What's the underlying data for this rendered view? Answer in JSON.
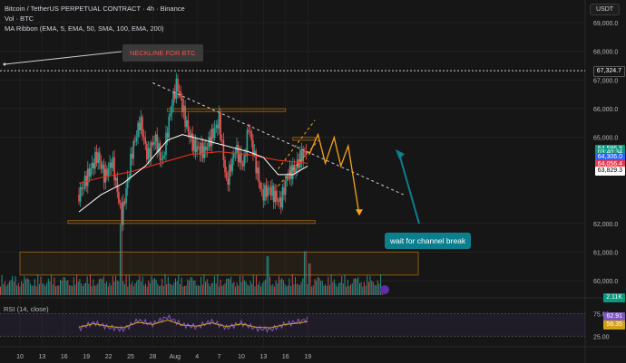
{
  "header": {
    "symbol_line": "Bitcoin / TetherUS PERPETUAL CONTRACT · 4h · Binance",
    "vol_line": "Vol · BTC",
    "ma_line": "MA Ribbon (EMA, 5, EMA, 50, SMA, 100, EMA, 200)",
    "unit_button": "USDT"
  },
  "annotations": {
    "neckline_label": "NECKLINE FOR BTC",
    "callout": "wait for channel break",
    "rsi_label": "RSI (14, close)"
  },
  "colors": {
    "up": "#26a69a",
    "down": "#ef5350",
    "ema50": "#ffffff",
    "sma100": "#e0301e",
    "accent_orange": "#f7a21b",
    "callout": "#0c7f8e",
    "rsi_line": "#7e57c2",
    "rsi_ma": "#d4a017"
  },
  "badges": [
    {
      "text": "67,324.7",
      "price": 67324.7,
      "bg": "#161616",
      "fg": "#ffffff"
    },
    {
      "text": "64,596.8",
      "price": 64596.8,
      "bg": "#089981",
      "fg": "#ffffff"
    },
    {
      "text": "03:40:34",
      "price": 64450,
      "bg": "#089981",
      "fg": "#ffffff"
    },
    {
      "text": "64,306.0",
      "price": 64306.0,
      "bg": "#2962ff",
      "fg": "#ffffff"
    },
    {
      "text": "64,056.4",
      "price": 64056.4,
      "bg": "#f23645",
      "fg": "#ffffff"
    },
    {
      "text": "63,829.3",
      "price": 63829.3,
      "bg": "#ffffff",
      "fg": "#000000"
    },
    {
      "text": "2.11K",
      "price": 59420,
      "bg": "#089981",
      "fg": "#ffffff"
    }
  ],
  "rsi_badges": [
    {
      "text": "62.91",
      "value": 62.91,
      "bg": "#7e57c2"
    },
    {
      "text": "56.35",
      "value": 56.35,
      "bg": "#d4a017"
    }
  ],
  "chart_data": {
    "type": "candlestick",
    "title": "Bitcoin / TetherUS PERPETUAL CONTRACT · 4h · Binance",
    "y_axis": {
      "ticks": [
        69000,
        68000,
        67000,
        66000,
        65000,
        62000,
        61000,
        60000
      ],
      "tick_labels": [
        "69,000.0",
        "68,000.0",
        "67,000.0",
        "66,000.0",
        "65,000.0",
        "62,000.0",
        "61,000.0",
        "60,000.0"
      ],
      "range": [
        59500,
        69600
      ]
    },
    "x_axis": {
      "ticks": [
        "10",
        "13",
        "16",
        "19",
        "22",
        "25",
        "28",
        "Aug",
        "4",
        "7",
        "10",
        "13",
        "16",
        "19"
      ]
    },
    "rsi_axis": {
      "ticks": [
        75,
        25
      ],
      "tick_labels": [
        "75.00",
        "25.00"
      ]
    },
    "price_path": [
      {
        "x": 8.0,
        "price": 63000
      },
      {
        "x": 10.5,
        "price": 64400
      },
      {
        "x": 11.5,
        "price": 63600
      },
      {
        "x": 12.5,
        "price": 64200
      },
      {
        "x": 13.8,
        "price": 62200
      },
      {
        "x": 15.2,
        "price": 64500
      },
      {
        "x": 16.3,
        "price": 65600
      },
      {
        "x": 17.3,
        "price": 64300
      },
      {
        "x": 18.3,
        "price": 65000
      },
      {
        "x": 19.3,
        "price": 64100
      },
      {
        "x": 20.6,
        "price": 66200
      },
      {
        "x": 21.3,
        "price": 66900
      },
      {
        "x": 22.5,
        "price": 65500
      },
      {
        "x": 23.5,
        "price": 64700
      },
      {
        "x": 25.0,
        "price": 64500
      },
      {
        "x": 27.0,
        "price": 65600
      },
      {
        "x": 28.0,
        "price": 63400
      },
      {
        "x": 29.2,
        "price": 64600
      },
      {
        "x": 30.3,
        "price": 64000
      },
      {
        "x": 31.0,
        "price": 65400
      },
      {
        "x": 32.0,
        "price": 64000
      },
      {
        "x": 32.8,
        "price": 63000
      },
      {
        "x": 33.8,
        "price": 63200
      },
      {
        "x": 35.3,
        "price": 62700
      },
      {
        "x": 36.3,
        "price": 63700
      },
      {
        "x": 37.3,
        "price": 63900
      },
      {
        "x": 38.0,
        "price": 64300
      },
      {
        "x": 39.0,
        "price": 64600
      }
    ],
    "ema50_path": [
      {
        "x": 8.0,
        "price": 62400
      },
      {
        "x": 11.0,
        "price": 63000
      },
      {
        "x": 14.0,
        "price": 63400
      },
      {
        "x": 17.0,
        "price": 64000
      },
      {
        "x": 20.0,
        "price": 64900
      },
      {
        "x": 22.0,
        "price": 65100
      },
      {
        "x": 25.0,
        "price": 64900
      },
      {
        "x": 28.0,
        "price": 64700
      },
      {
        "x": 31.0,
        "price": 64500
      },
      {
        "x": 33.0,
        "price": 64300
      },
      {
        "x": 35.0,
        "price": 63700
      },
      {
        "x": 37.0,
        "price": 63700
      },
      {
        "x": 39.0,
        "price": 64000
      }
    ],
    "sma100_path": [
      {
        "x": 8.0,
        "price": 63400
      },
      {
        "x": 11.0,
        "price": 63600
      },
      {
        "x": 15.0,
        "price": 63800
      },
      {
        "x": 19.0,
        "price": 64100
      },
      {
        "x": 23.0,
        "price": 64400
      },
      {
        "x": 27.0,
        "price": 64500
      },
      {
        "x": 31.0,
        "price": 64400
      },
      {
        "x": 35.0,
        "price": 64200
      },
      {
        "x": 39.0,
        "price": 64100
      }
    ],
    "projection_path": [
      {
        "x": 39.2,
        "price": 64400
      },
      {
        "x": 40.4,
        "price": 65100
      },
      {
        "x": 41.4,
        "price": 64100
      },
      {
        "x": 42.6,
        "price": 65000
      },
      {
        "x": 43.5,
        "price": 64000
      },
      {
        "x": 44.5,
        "price": 64700
      },
      {
        "x": 46.0,
        "price": 62300
      }
    ],
    "neckline": [
      {
        "x": 18.0,
        "price": 66900
      },
      {
        "x": 52.0,
        "price": 63000
      }
    ],
    "channel_upper": [
      {
        "x": 35.0,
        "price": 63900
      },
      {
        "x": 40.0,
        "price": 65600
      }
    ],
    "channel_lower": [
      {
        "x": 35.0,
        "price": 63300
      },
      {
        "x": 40.5,
        "price": 64900
      }
    ],
    "zones": [
      {
        "x0": 20.0,
        "x1": 36.0,
        "p0": 65900,
        "p1": 66000
      },
      {
        "x0": 37.0,
        "x1": 40.0,
        "p0": 64900,
        "p1": 65000
      },
      {
        "x0": 6.5,
        "x1": 40.0,
        "p0": 62000,
        "p1": 62100
      },
      {
        "x0": 0.0,
        "x1": 54.0,
        "p0": 60200,
        "p1": 61000
      }
    ],
    "volume_peaks": [
      {
        "x": 13.6,
        "value": 1.0
      },
      {
        "x": 33.5,
        "value": 0.55
      },
      {
        "x": 38.6,
        "value": 0.62
      },
      {
        "x": 39.2,
        "value": 0.45
      }
    ],
    "rsi_series": [
      {
        "x": 8,
        "value": 42
      },
      {
        "x": 10,
        "value": 55
      },
      {
        "x": 12,
        "value": 45
      },
      {
        "x": 14,
        "value": 40
      },
      {
        "x": 16,
        "value": 60
      },
      {
        "x": 18,
        "value": 52
      },
      {
        "x": 20,
        "value": 68
      },
      {
        "x": 22,
        "value": 50
      },
      {
        "x": 24,
        "value": 46
      },
      {
        "x": 26,
        "value": 58
      },
      {
        "x": 28,
        "value": 44
      },
      {
        "x": 30,
        "value": 54
      },
      {
        "x": 32,
        "value": 42
      },
      {
        "x": 34,
        "value": 40
      },
      {
        "x": 36,
        "value": 52
      },
      {
        "x": 38,
        "value": 58
      },
      {
        "x": 39,
        "value": 62.91
      }
    ]
  }
}
